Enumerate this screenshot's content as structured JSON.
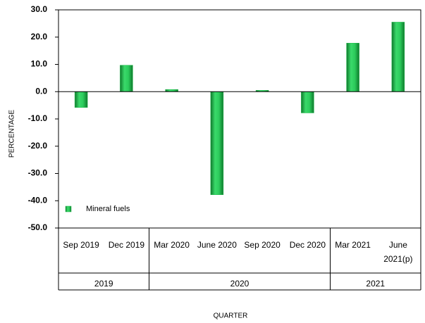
{
  "chart_data": {
    "type": "bar",
    "categories": [
      "Sep 2019",
      "Dec 2019",
      "Mar 2020",
      "June 2020",
      "Sep 2020",
      "Dec 2020",
      "Mar 2021",
      "June 2021(p)"
    ],
    "series": [
      {
        "name": "Mineral fuels",
        "color": "#1fb84a",
        "values": [
          -5.8,
          9.7,
          0.8,
          -37.8,
          0.5,
          -7.8,
          17.8,
          25.5
        ]
      }
    ],
    "groups": [
      {
        "label": "2019",
        "count": 2
      },
      {
        "label": "2020",
        "count": 4
      },
      {
        "label": "2021",
        "count": 2
      }
    ],
    "ylabel": "PERCENTAGE",
    "xlabel": "QUARTER",
    "ylim": [
      -50,
      30
    ],
    "yticks": [
      {
        "value": -50,
        "label": "-50.0"
      },
      {
        "value": -40,
        "label": "-40.0"
      },
      {
        "value": -30,
        "label": "-30.0"
      },
      {
        "value": -20,
        "label": "-20.0"
      },
      {
        "value": -10,
        "label": "-10.0"
      },
      {
        "value": 0,
        "label": "0.0"
      },
      {
        "value": 10,
        "label": "10.0"
      },
      {
        "value": 20,
        "label": "20.0"
      },
      {
        "value": 30,
        "label": "30.0"
      }
    ],
    "legend": "lower left",
    "grid": false
  }
}
